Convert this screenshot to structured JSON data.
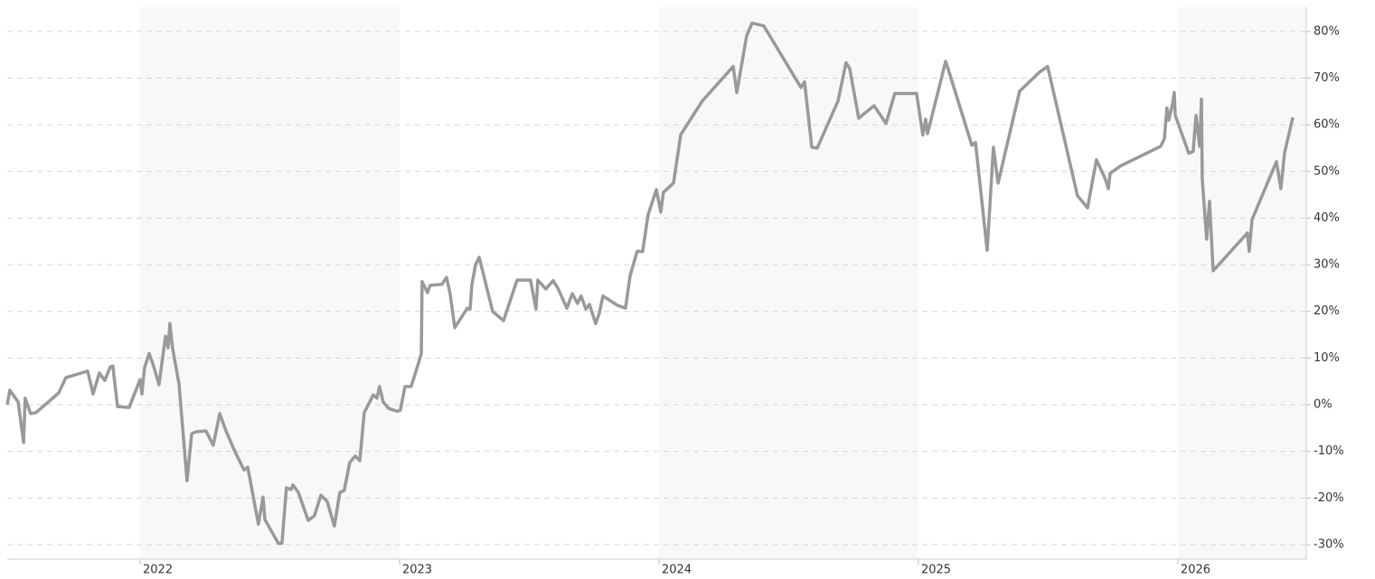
{
  "chart_data": {
    "type": "line",
    "x": [
      2021.488,
      2021.498,
      2021.53,
      2021.551,
      2021.557,
      2021.578,
      2021.599,
      2021.686,
      2021.714,
      2021.798,
      2021.819,
      2021.843,
      2021.864,
      2021.885,
      2021.895,
      2021.913,
      2021.958,
      2022.0,
      2022.007,
      2022.017,
      2022.035,
      2022.052,
      2022.073,
      2022.098,
      2022.108,
      2022.115,
      2022.125,
      2022.15,
      2022.181,
      2022.199,
      2022.216,
      2022.254,
      2022.282,
      2022.307,
      2022.331,
      2022.366,
      2022.401,
      2022.415,
      2022.456,
      2022.474,
      2022.481,
      2022.502,
      2022.533,
      2022.547,
      2022.564,
      2022.582,
      2022.589,
      2022.61,
      2022.648,
      2022.672,
      2022.697,
      2022.721,
      2022.749,
      2022.77,
      2022.787,
      2022.808,
      2022.829,
      2022.847,
      2022.864,
      2022.899,
      2022.913,
      2022.923,
      2022.937,
      2022.958,
      2022.99,
      2023.003,
      2023.021,
      2023.045,
      2023.084,
      2023.087,
      2023.108,
      2023.118,
      2023.164,
      2023.181,
      2023.195,
      2023.213,
      2023.261,
      2023.272,
      2023.279,
      2023.293,
      2023.307,
      2023.359,
      2023.401,
      2023.453,
      2023.505,
      2023.526,
      2023.533,
      2023.564,
      2023.592,
      2023.61,
      2023.645,
      2023.666,
      2023.686,
      2023.7,
      2023.718,
      2023.732,
      2023.756,
      2023.77,
      2023.784,
      2023.84,
      2023.871,
      2023.889,
      2023.916,
      2023.937,
      2023.958,
      2023.99,
      2024.007,
      2024.017,
      2024.056,
      2024.084,
      2024.167,
      2024.286,
      2024.3,
      2024.338,
      2024.348,
      2024.359,
      2024.404,
      2024.547,
      2024.561,
      2024.589,
      2024.61,
      2024.69,
      2024.721,
      2024.735,
      2024.77,
      2024.829,
      2024.875,
      2024.909,
      2024.993,
      2025.017,
      2025.028,
      2025.035,
      2025.105,
      2025.115,
      2025.206,
      2025.22,
      2025.265,
      2025.289,
      2025.307,
      2025.39,
      2025.467,
      2025.498,
      2025.613,
      2025.652,
      2025.686,
      2025.721,
      2025.732,
      2025.739,
      2025.78,
      2025.934,
      2025.948,
      2025.958,
      2025.965,
      2025.979,
      2025.986,
      2025.99,
      2026.042,
      2026.059,
      2026.07,
      2026.084,
      2026.091,
      2026.094,
      2026.111,
      2026.122,
      2026.136,
      2026.268,
      2026.275,
      2026.286,
      2026.38,
      2026.397,
      2026.411,
      2026.443
    ],
    "series": [
      {
        "color": "#999999",
        "values": [
          0,
          3.1,
          0.6,
          -8.1,
          1.4,
          -1.9,
          -1.7,
          2.5,
          5.8,
          7.2,
          2.3,
          6.8,
          5.2,
          8.1,
          8.3,
          -0.4,
          -0.6,
          5.4,
          2.3,
          7.9,
          11.0,
          8.3,
          4.3,
          14.7,
          12.2,
          17.4,
          12.2,
          4.5,
          -16.3,
          -6.2,
          -5.8,
          -5.6,
          -8.7,
          -1.9,
          -5.6,
          -10.1,
          -14.0,
          -13.4,
          -25.6,
          -19.8,
          -24.6,
          -26.7,
          -29.7,
          -29.7,
          -17.8,
          -18.2,
          -17.2,
          -18.8,
          -24.8,
          -23.8,
          -19.4,
          -20.7,
          -26.0,
          -18.8,
          -18.4,
          -12.4,
          -11.0,
          -12.0,
          -1.7,
          2.1,
          1.4,
          3.9,
          0.6,
          -0.8,
          -1.4,
          -1.2,
          3.9,
          3.9,
          10.9,
          26.4,
          24.0,
          25.6,
          25.8,
          27.3,
          23.8,
          16.5,
          20.7,
          20.5,
          25.8,
          30.0,
          31.6,
          20.0,
          18.0,
          26.7,
          26.7,
          20.5,
          26.7,
          24.8,
          26.6,
          25.0,
          20.7,
          23.8,
          21.7,
          23.3,
          20.5,
          21.5,
          17.4,
          19.6,
          23.3,
          21.3,
          20.7,
          27.7,
          32.9,
          32.8,
          40.7,
          46.1,
          41.3,
          45.5,
          47.5,
          57.9,
          65.1,
          72.5,
          66.9,
          79.1,
          80.4,
          81.8,
          81.2,
          68.0,
          69.2,
          55.2,
          55.0,
          65.1,
          73.3,
          72.1,
          61.4,
          64.1,
          60.3,
          66.7,
          66.7,
          57.8,
          61.2,
          58.1,
          73.6,
          71.9,
          55.6,
          56.2,
          33.1,
          55.2,
          47.5,
          67.2,
          71.3,
          72.5,
          44.8,
          42.2,
          52.5,
          48.3,
          46.3,
          49.6,
          51.2,
          55.4,
          57.0,
          63.6,
          61.0,
          64.3,
          66.9,
          62.0,
          53.9,
          54.3,
          62.0,
          55.4,
          65.5,
          48.4,
          35.5,
          43.6,
          28.7,
          36.8,
          32.9,
          39.7,
          52.1,
          46.3,
          53.9,
          61.6
        ]
      }
    ],
    "xlim": [
      2021.488,
      2026.495
    ],
    "xticks": [
      2022,
      2023,
      2024,
      2025,
      2026
    ],
    "ylim": [
      -33.1,
      85.2
    ],
    "yticks": [
      {
        "value": -30,
        "label": "-30%"
      },
      {
        "value": -20,
        "label": "-20%"
      },
      {
        "value": -10,
        "label": "-10%"
      },
      {
        "value": 0,
        "label": "0%"
      },
      {
        "value": 10,
        "label": "10%"
      },
      {
        "value": 20,
        "label": "20%"
      },
      {
        "value": 30,
        "label": "30%"
      },
      {
        "value": 40,
        "label": "40%"
      },
      {
        "value": 50,
        "label": "50%"
      },
      {
        "value": 60,
        "label": "60%"
      },
      {
        "value": 70,
        "label": "70%"
      },
      {
        "value": 80,
        "label": "80%"
      }
    ],
    "grid": true
  }
}
